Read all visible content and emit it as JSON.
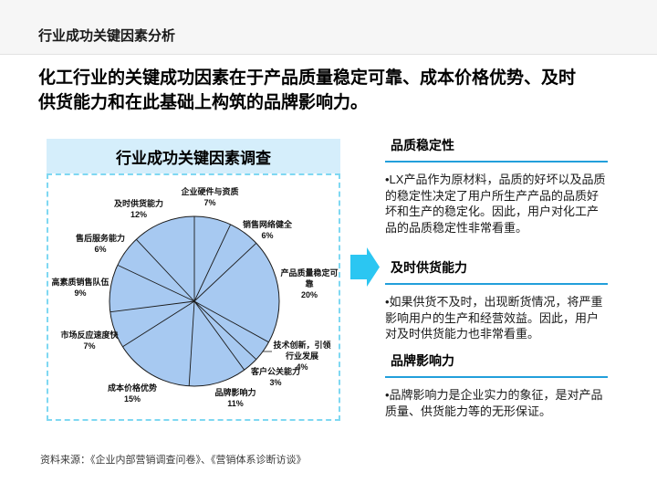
{
  "header": {
    "title": "行业成功关键因素分析"
  },
  "lead": {
    "text": "化工行业的关键成功因素在于产品质量稳定可靠、成本价格优势、及时供货能力和在此基础上构筑的品牌影响力。"
  },
  "chart_data": {
    "type": "pie",
    "title": "行业成功关键因素调查",
    "legend_position": "none",
    "slices": [
      {
        "label": "企业硬件与资质",
        "value": 7,
        "pct": "7%"
      },
      {
        "label": "销售网络健全",
        "value": 6,
        "pct": "6%"
      },
      {
        "label": "产品质量稳定可靠",
        "value": 20,
        "pct": "20%"
      },
      {
        "label": "技术创新，引领行业发展",
        "value": 4,
        "pct": "4%"
      },
      {
        "label": "客户公关能力",
        "value": 3,
        "pct": "3%"
      },
      {
        "label": "品牌影响力",
        "value": 11,
        "pct": "11%"
      },
      {
        "label": "成本价格优势",
        "value": 15,
        "pct": "15%"
      },
      {
        "label": "市场反应速度快",
        "value": 7,
        "pct": "7%"
      },
      {
        "label": "高素质销售队伍",
        "value": 9,
        "pct": "9%"
      },
      {
        "label": "售后服务能力",
        "value": 6,
        "pct": "6%"
      },
      {
        "label": "及时供货能力",
        "value": 12,
        "pct": "12%"
      }
    ]
  },
  "sections": [
    {
      "heading": "品质稳定性",
      "body": "•LX产品作为原材料，品质的好坏以及品质的稳定性决定了用户所生产产品的品质好坏和生产的稳定化。因此，用户对化工产品的品质稳定性非常看重。"
    },
    {
      "heading": "及时供货能力",
      "body": "•如果供货不及时，出现断货情况，将严重影响用户的生产和经营效益。因此，用户对及时供货能力也非常看重。"
    },
    {
      "heading": "品牌影响力",
      "body": "•品牌影响力是企业实力的象征，是对产品质量、供货能力等的无形保证。"
    }
  ],
  "footer": {
    "source": "资料来源：《企业内部营销调查问卷》、《营销体系诊断访谈》"
  },
  "colors": {
    "pie_fill": "#a7c9f1",
    "pie_stroke": "#1a1a1a",
    "chart_title_bg": "#d5eefb",
    "dashed_border": "#7fd8f2",
    "arrow": "#2bc6f2",
    "section_underline": "#229fdb"
  }
}
